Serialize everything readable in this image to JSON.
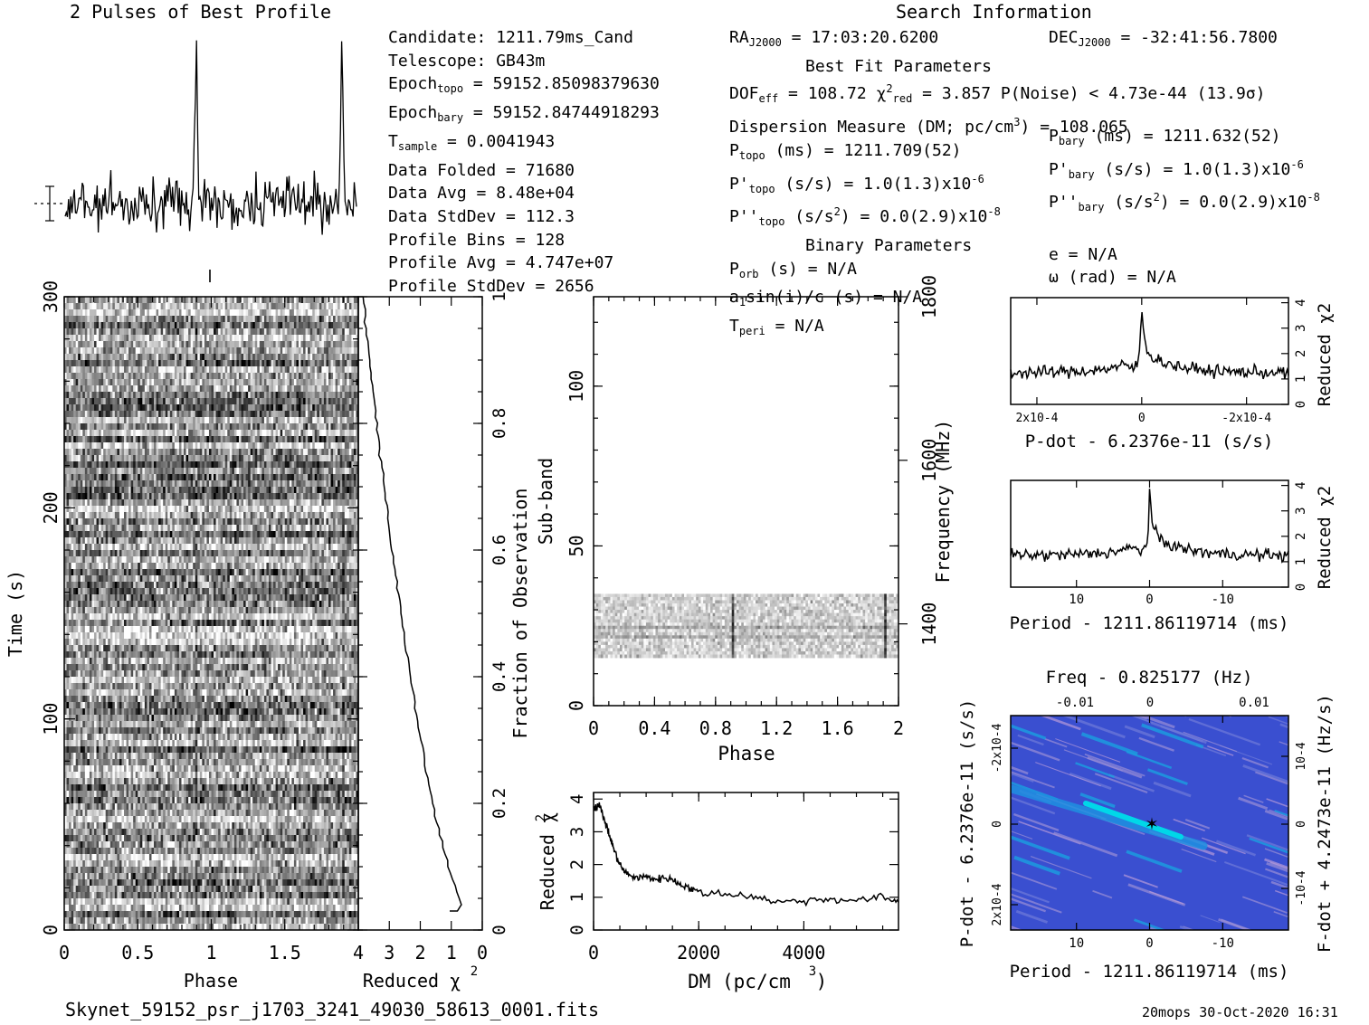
{
  "header": {
    "profile_title": "2 Pulses of Best Profile",
    "search_title": "Search Information"
  },
  "info_left": [
    "Candidate:  1211.79ms_Cand",
    "Telescope:  GB43m",
    "Epoch",
    "Epoch",
    "T",
    "Data Folded     =  71680",
    "Data Avg        =  8.48e+04",
    "Data StdDev     =  112.3",
    "Profile Bins    =  128",
    "Profile Avg     =  4.747e+07",
    "Profile StdDev  =  2656"
  ],
  "info_sub": {
    "epoch_topo_sub": "topo",
    "epoch_topo_val": " = 59152.85098379630",
    "epoch_bary_sub": "bary",
    "epoch_bary_val": " = 59152.84744918293",
    "tsample_sub": "sample",
    "tsample_val": "        =  0.0041943"
  },
  "info_mid": {
    "ra_label": "RA",
    "ra_sub": "J2000",
    "ra_val": " = 17:03:20.6200",
    "best_fit": "Best Fit Parameters",
    "dof": "DOF",
    "dof_sub": "eff",
    "dof_val": " = 108.72  χ",
    "chi_sup": "2",
    "chi_sub": "red",
    "chi_val": " = 3.857  P(Noise) < 4.73e-44  (13.9σ)",
    "dm_line": "Dispersion Measure (DM; pc/cm",
    "dm_sup": "3",
    "dm_val": ") = 108.065",
    "ptopo": "P",
    "ptopo_sub": "topo",
    "ptopo_val": " (ms) =  1211.709(52)",
    "pdtopo": "P'",
    "pdtopo_val": " (s/s) =  1.0(1.3)x10",
    "pdtopo_exp": "-6",
    "pddtopo": "P''",
    "pddtopo_val": " (s/s",
    "pddtopo_val2": ") = 0.0(2.9)x10",
    "pddtopo_exp": "-8",
    "binary": "Binary Parameters",
    "porb": "P",
    "porb_sub": "orb",
    "porb_val": " (s) = N/A",
    "asini": "a",
    "asini_sub": "1",
    "asini_val": "sin(i)/c (s) = N/A",
    "tperi": "T",
    "tperi_sub": "peri",
    "tperi_val": " = N/A"
  },
  "info_right": {
    "dec_label": "DEC",
    "dec_sub": "J2000",
    "dec_val": " = -32:41:56.7800",
    "pbary": "P",
    "pbary_sub": "bary",
    "pbary_val": " (ms) =  1211.632(52)",
    "pdbary": "P'",
    "pdbary_val": " (s/s) =  1.0(1.3)x10",
    "pdbary_exp": "-6",
    "pddbary": "P''",
    "pddbary_val": " (s/s",
    "pddbary_val2": ") = 0.0(2.9)x10",
    "pddbary_exp": "-8",
    "ecc": "e = N/A",
    "omega": "ω (rad) = N/A"
  },
  "footer": {
    "filename": "Skynet_59152_psr_j1703_3241_49030_58613_0001.fits",
    "stamp": "20mops 30-Oct-2020 16:31"
  },
  "colors": {
    "accent_low": "#3a4fd0",
    "accent_high": "#00d7e8",
    "marker": "#000000"
  },
  "chart_data": [
    {
      "type": "line",
      "name": "pulse_profile",
      "title": "2 Pulses of Best Profile",
      "x_range": [
        0,
        2
      ],
      "peaks_phase": [
        0.9,
        1.9
      ]
    },
    {
      "type": "heatmap",
      "name": "time_phase",
      "xlabel": "Phase",
      "ylabel": "Time (s)",
      "xlim": [
        0,
        2
      ],
      "ylim": [
        0,
        300
      ],
      "x_ticks": [
        "0",
        "0.5",
        "1",
        "1.5"
      ],
      "y_ticks": [
        "0",
        "100",
        "200",
        "300"
      ]
    },
    {
      "type": "line",
      "name": "reduced_chi2_vs_time",
      "xlabel": "Reduced χ2",
      "ylabel": "Fraction of Observation",
      "xlim": [
        4,
        0
      ],
      "ylim": [
        0,
        1
      ],
      "x_ticks": [
        "4",
        "3",
        "2",
        "1",
        "0"
      ],
      "y_ticks": [
        "0",
        "0.2",
        "0.4",
        "0.6",
        "0.8",
        "1"
      ]
    },
    {
      "type": "heatmap",
      "name": "subband_phase",
      "xlabel": "Phase",
      "ylabel": "Sub-band",
      "y2label": "Frequency (MHz)",
      "xlim": [
        0,
        2
      ],
      "ylim": [
        0,
        128
      ],
      "x_ticks": [
        "0",
        "0.4",
        "0.8",
        "1.2",
        "1.6",
        "2"
      ],
      "y_ticks": [
        "0",
        "50",
        "100"
      ],
      "y2_ticks": [
        "1400",
        "1600",
        "1800"
      ],
      "band_subbands": [
        15,
        35
      ]
    },
    {
      "type": "line",
      "name": "dm_curve",
      "xlabel": "DM (pc/cm3)",
      "ylabel": "Reduced χ2",
      "xlim": [
        0,
        5800
      ],
      "ylim": [
        0,
        4.2
      ],
      "x_ticks": [
        "0",
        "2000",
        "4000"
      ],
      "y_ticks": [
        "0",
        "1",
        "2",
        "3",
        "4"
      ],
      "x": [
        0,
        100,
        200,
        300,
        400,
        500,
        600,
        800,
        1000,
        1200,
        1400,
        1600,
        1800,
        2000,
        2500,
        3000,
        3500,
        4000,
        4500,
        5000,
        5500,
        5800
      ],
      "y": [
        3.7,
        3.85,
        3.4,
        2.9,
        2.4,
        2.0,
        1.75,
        1.6,
        1.62,
        1.55,
        1.6,
        1.45,
        1.3,
        1.15,
        1.1,
        1.05,
        0.85,
        0.9,
        0.95,
        0.9,
        1.0,
        0.85
      ]
    },
    {
      "type": "line",
      "name": "pdot_curve",
      "xlabel": "P-dot - 6.2376e-11 (s/s)",
      "ylabel": "Reduced χ2",
      "x_ticks": [
        "2x10-4",
        "0",
        "-2x10-4"
      ],
      "y_ticks": [
        "0",
        "1",
        "2",
        "3",
        "4"
      ],
      "xlim": [
        0.00025,
        -0.00028
      ],
      "ylim": [
        0,
        4.2
      ],
      "peak_x": 0,
      "peak_y": 3.9
    },
    {
      "type": "line",
      "name": "period_curve",
      "xlabel": "Period - 1211.86119714 (ms)",
      "ylabel": "Reduced χ2",
      "x_ticks": [
        "10",
        "0",
        "-10"
      ],
      "y_ticks": [
        "0",
        "1",
        "2",
        "3",
        "4"
      ],
      "xlim": [
        19,
        -19
      ],
      "ylim": [
        0,
        4.2
      ],
      "peak_x": 0,
      "peak_y": 3.9
    },
    {
      "type": "heatmap",
      "name": "period_pdot_plane",
      "title": "Freq - 0.825177 (Hz)",
      "xlabel": "Period - 1211.86119714 (ms)",
      "ylabel": "P-dot - 6.2376e-11 (s/s)",
      "y2label": "F-dot + 4.2473e-11 (Hz/s)",
      "x_ticks": [
        "10",
        "0",
        "-10"
      ],
      "top_ticks": [
        "-0.01",
        "0",
        "0.01"
      ],
      "y_ticks": [
        "-2x10-4",
        "0",
        "2x10-4"
      ],
      "y2_ticks": [
        "10-4",
        "0",
        "-10-4"
      ],
      "best_x": 0,
      "best_y": 0
    }
  ]
}
